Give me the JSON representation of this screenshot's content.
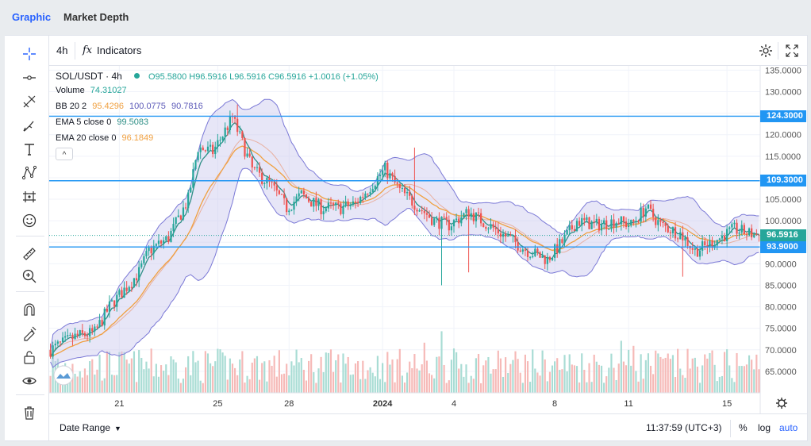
{
  "tabs": {
    "graphic": "Graphic",
    "market_depth": "Market Depth"
  },
  "toolbar": {
    "interval": "4h",
    "indicators_label": "Indicators",
    "fx_label": "fx"
  },
  "legend": {
    "symbol": "SOL/USDT · 4h",
    "ohlc": "O95.5800 H96.5916 L96.5916 C96.5916 +1.0016 (+1.05%)",
    "volume_label": "Volume",
    "volume_value": "74.31027",
    "bb_label": "BB 20 2",
    "bb_mid": "95.4296",
    "bb_upper": "100.0775",
    "bb_lower": "90.7816",
    "ema5_label": "EMA 5 close 0",
    "ema5_value": "99.5083",
    "ema20_label": "EMA 20 close 0",
    "ema20_value": "96.1849",
    "collapse": "^"
  },
  "bottom": {
    "date_range": "Date Range",
    "time": "11:37:59 (UTC+3)",
    "pct": "%",
    "log": "log",
    "auto": "auto"
  },
  "colors": {
    "up": "#26a69a",
    "down": "#ef5350",
    "bb_fill": "#c9c7ee",
    "bb_line": "#7b79d6",
    "ema5": "#2f8f86",
    "ema20": "#f0a040",
    "hline": "#2196f3",
    "accent": "#2962ff"
  },
  "chart_data": {
    "type": "candlestick",
    "symbol": "SOL/USDT",
    "interval": "4h",
    "ylim": [
      60,
      136
    ],
    "y_ticks": [
      135,
      130,
      125,
      120,
      115,
      110,
      105,
      100,
      95,
      90,
      85,
      80,
      75,
      70,
      65
    ],
    "y_tick_labels": [
      "135.0000",
      "130.0000",
      "125.0000",
      "120.0000",
      "115.0000",
      "110.0000",
      "105.0000",
      "100.0000",
      "95.0000",
      "90.0000",
      "85.0000",
      "80.0000",
      "75.0000",
      "70.0000",
      "65.0000"
    ],
    "x_tick_labels": [
      "21",
      "25",
      "28",
      "2024",
      "4",
      "8",
      "11",
      "15"
    ],
    "x_tick_index": [
      28,
      68,
      97,
      135,
      164,
      205,
      235,
      275
    ],
    "horizontal_lines": [
      124.3,
      109.3,
      93.9
    ],
    "horizontal_line_labels": [
      "124.3000",
      "109.3000",
      "93.9000"
    ],
    "last_price": 96.5916,
    "last_price_label": "96.5916",
    "anchors": [
      [
        0,
        70
      ],
      [
        10,
        73
      ],
      [
        18,
        74
      ],
      [
        24,
        80
      ],
      [
        30,
        84
      ],
      [
        36,
        88
      ],
      [
        40,
        93
      ],
      [
        48,
        96
      ],
      [
        56,
        105
      ],
      [
        60,
        117
      ],
      [
        66,
        116
      ],
      [
        74,
        124
      ],
      [
        78,
        118
      ],
      [
        82,
        112
      ],
      [
        90,
        108
      ],
      [
        96,
        103
      ],
      [
        102,
        106
      ],
      [
        110,
        103
      ],
      [
        118,
        103
      ],
      [
        124,
        104
      ],
      [
        130,
        108
      ],
      [
        136,
        112
      ],
      [
        142,
        107
      ],
      [
        150,
        103
      ],
      [
        156,
        100
      ],
      [
        162,
        99
      ],
      [
        170,
        102
      ],
      [
        178,
        99
      ],
      [
        186,
        96
      ],
      [
        194,
        93
      ],
      [
        202,
        91
      ],
      [
        208,
        95
      ],
      [
        214,
        100
      ],
      [
        222,
        99
      ],
      [
        230,
        100
      ],
      [
        236,
        99
      ],
      [
        242,
        103
      ],
      [
        248,
        99
      ],
      [
        256,
        97
      ],
      [
        262,
        93
      ],
      [
        266,
        94
      ],
      [
        272,
        96
      ],
      [
        278,
        98
      ],
      [
        284,
        97
      ],
      [
        288,
        96.6
      ]
    ],
    "volume_axis_max": 100
  }
}
